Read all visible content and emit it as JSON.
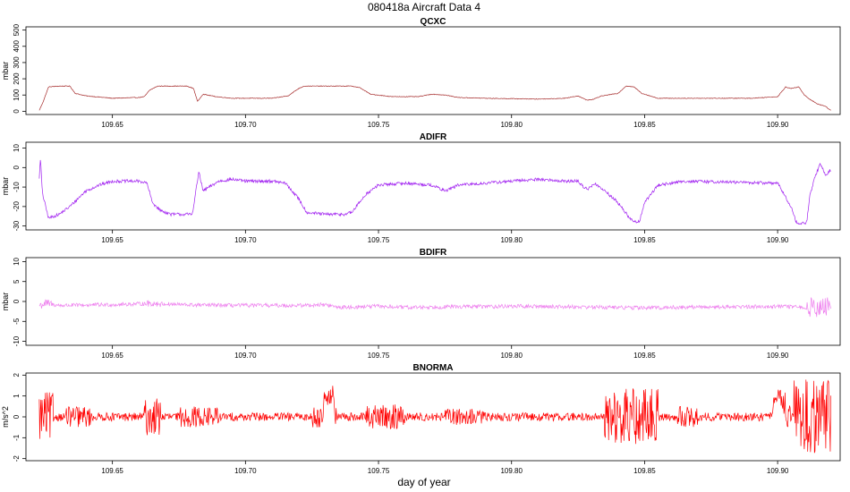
{
  "figure": {
    "title": "080418a   Aircraft Data 4",
    "xlabel": "day of year"
  },
  "chart_data": [
    {
      "type": "line",
      "title": "QCXC",
      "ylabel": "mbar",
      "color": "#a52a2a",
      "xlim": [
        109.6175,
        109.9235
      ],
      "ylim": [
        -20,
        520
      ],
      "xticks": [
        109.65,
        109.7,
        109.75,
        109.8,
        109.85,
        109.9
      ],
      "xtick_labels": [
        "109.65",
        "109.70",
        "109.75",
        "109.80",
        "109.85",
        "109.90"
      ],
      "yticks": [
        0,
        100,
        200,
        300,
        400,
        500
      ],
      "ytick_labels": [
        "0",
        "100",
        "200",
        "300",
        "400",
        "500"
      ],
      "noise": 2,
      "x": [
        109.6225,
        109.624,
        109.626,
        109.63,
        109.634,
        109.636,
        109.64,
        109.65,
        109.66,
        109.662,
        109.664,
        109.667,
        109.678,
        109.6805,
        109.682,
        109.684,
        109.689,
        109.695,
        109.71,
        109.716,
        109.72,
        109.722,
        109.725,
        109.74,
        109.743,
        109.747,
        109.755,
        109.765,
        109.77,
        109.775,
        109.78,
        109.79,
        109.81,
        109.82,
        109.825,
        109.828,
        109.83,
        109.834,
        109.84,
        109.843,
        109.846,
        109.849,
        109.855,
        109.87,
        109.89,
        109.9,
        109.903,
        109.905,
        109.908,
        109.91,
        109.912,
        109.915,
        109.918,
        109.92
      ],
      "y": [
        5,
        60,
        150,
        155,
        155,
        110,
        95,
        80,
        85,
        90,
        130,
        155,
        155,
        140,
        60,
        105,
        90,
        80,
        80,
        95,
        140,
        155,
        155,
        155,
        145,
        105,
        90,
        90,
        105,
        100,
        85,
        80,
        75,
        80,
        95,
        70,
        70,
        95,
        110,
        155,
        150,
        110,
        80,
        80,
        80,
        90,
        150,
        140,
        150,
        100,
        75,
        45,
        30,
        5
      ]
    },
    {
      "type": "line",
      "title": "ADIFR",
      "ylabel": "mbar",
      "color": "#a020f0",
      "xlim": [
        109.6175,
        109.9235
      ],
      "ylim": [
        -32,
        13
      ],
      "xticks": [
        109.65,
        109.7,
        109.75,
        109.8,
        109.85,
        109.9
      ],
      "xtick_labels": [
        "109.65",
        "109.70",
        "109.75",
        "109.80",
        "109.85",
        "109.90"
      ],
      "yticks": [
        -30,
        -20,
        -10,
        0,
        10
      ],
      "ytick_labels": [
        "-30",
        "-20",
        "-10",
        "0",
        "10"
      ],
      "noise": 0.8,
      "x": [
        109.6225,
        109.623,
        109.6235,
        109.624,
        109.626,
        109.63,
        109.634,
        109.64,
        109.645,
        109.65,
        109.66,
        109.663,
        109.665,
        109.668,
        109.672,
        109.68,
        109.6825,
        109.684,
        109.69,
        109.695,
        109.7,
        109.71,
        109.715,
        109.72,
        109.723,
        109.73,
        109.737,
        109.74,
        109.745,
        109.75,
        109.76,
        109.77,
        109.775,
        109.78,
        109.79,
        109.8,
        109.81,
        109.82,
        109.825,
        109.827,
        109.829,
        109.831,
        109.835,
        109.84,
        109.845,
        109.848,
        109.85,
        109.855,
        109.865,
        109.9,
        109.905,
        109.907,
        109.909,
        109.911,
        109.912,
        109.914,
        109.916,
        109.918,
        109.92
      ],
      "y": [
        -5,
        5,
        -10,
        -15,
        -26,
        -24,
        -20,
        -12,
        -9,
        -7,
        -7,
        -8,
        -18,
        -22,
        -24,
        -24,
        -2,
        -12,
        -7,
        -6,
        -7,
        -7,
        -8,
        -16,
        -23,
        -24,
        -24,
        -23,
        -14,
        -9,
        -8,
        -9,
        -12,
        -9,
        -8,
        -7,
        -6,
        -7,
        -7,
        -10,
        -11,
        -8,
        -12,
        -18,
        -27,
        -28,
        -18,
        -9,
        -7,
        -8,
        -20,
        -28,
        -29,
        -28,
        -15,
        -5,
        2,
        -4,
        -1
      ]
    },
    {
      "type": "line",
      "title": "BDIFR",
      "ylabel": "mbar",
      "color": "#ee82ee",
      "xlim": [
        109.6175,
        109.9235
      ],
      "ylim": [
        -11,
        11
      ],
      "xticks": [
        109.65,
        109.7,
        109.75,
        109.8,
        109.85,
        109.9
      ],
      "xtick_labels": [
        "109.65",
        "109.70",
        "109.75",
        "109.80",
        "109.85",
        "109.90"
      ],
      "yticks": [
        -10,
        -5,
        0,
        5,
        10
      ],
      "ytick_labels": [
        "-10",
        "-5",
        "0",
        "5",
        "10"
      ],
      "noise": 0.5,
      "x": [
        109.6225,
        109.625,
        109.63,
        109.65,
        109.665,
        109.68,
        109.7,
        109.72,
        109.73,
        109.735,
        109.75,
        109.76,
        109.78,
        109.8,
        109.82,
        109.84,
        109.85,
        109.87,
        109.89,
        109.9,
        109.91,
        109.92
      ],
      "y": [
        -1,
        -0.5,
        -1,
        -0.8,
        -0.5,
        -0.9,
        -1,
        -1,
        -0.8,
        -1.5,
        -1.2,
        -1.5,
        -1.3,
        -1.2,
        -1.3,
        -1.5,
        -1.6,
        -1.4,
        -1.3,
        -1.2,
        -1.5,
        -1.5
      ]
    },
    {
      "type": "line",
      "title": "BNORMA",
      "ylabel": "m/s^2",
      "color": "#ff0000",
      "xlim": [
        109.6175,
        109.9235
      ],
      "ylim": [
        -2.1,
        2.1
      ],
      "xticks": [
        109.65,
        109.7,
        109.75,
        109.8,
        109.85,
        109.9
      ],
      "xtick_labels": [
        "109.65",
        "109.70",
        "109.75",
        "109.80",
        "109.85",
        "109.90"
      ],
      "yticks": [
        -2,
        -1,
        0,
        1,
        2
      ],
      "ytick_labels": [
        "-2",
        "-1",
        "0",
        "1",
        "2"
      ],
      "noise": 0.2,
      "x": [
        109.6225,
        109.66,
        109.72,
        109.729,
        109.7295,
        109.733,
        109.7335,
        109.8,
        109.898,
        109.8985,
        109.903,
        109.9035,
        109.92
      ],
      "y": [
        0,
        0,
        0,
        0,
        1,
        1,
        0,
        0,
        0,
        0.8,
        0.8,
        0,
        0
      ]
    }
  ]
}
